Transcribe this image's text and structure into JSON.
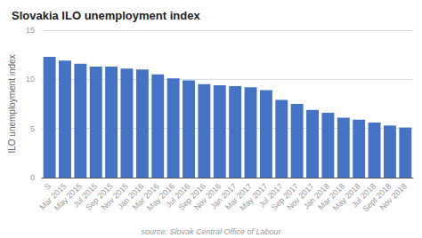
{
  "chart_data": {
    "type": "bar",
    "title": "Slovakia ILO unemployment index",
    "ylabel": "ILO unemployment index",
    "source": "source: Slovak Central Office of Labour",
    "color": "#4472C4",
    "categories": [
      "S",
      "Mar 2015",
      "May 2015",
      "Jul 2015",
      "Sep 2015",
      "Nov 2015",
      "Jan 2016",
      "Mar 2016",
      "May 2016",
      "Jul 2016",
      "Sep 2016",
      "Nov 2016",
      "Jan 2017",
      "Mar 2017",
      "May 2017",
      "Jul 2017",
      "Sep 2017",
      "Nov 2017",
      "Jan 2018",
      "Mar 2018",
      "May 2018",
      "Jul 2018",
      "Sept 2018",
      "Nov 2018"
    ],
    "values": [
      12.3,
      11.9,
      11.6,
      11.3,
      11.3,
      11.1,
      11.0,
      10.5,
      10.1,
      9.9,
      9.5,
      9.4,
      9.3,
      9.2,
      8.9,
      7.9,
      7.5,
      6.9,
      6.6,
      6.1,
      5.9,
      5.6,
      5.3,
      5.1
    ],
    "ylim": [
      0,
      15
    ],
    "yticks": [
      0,
      5,
      10,
      15
    ],
    "grid": true
  }
}
